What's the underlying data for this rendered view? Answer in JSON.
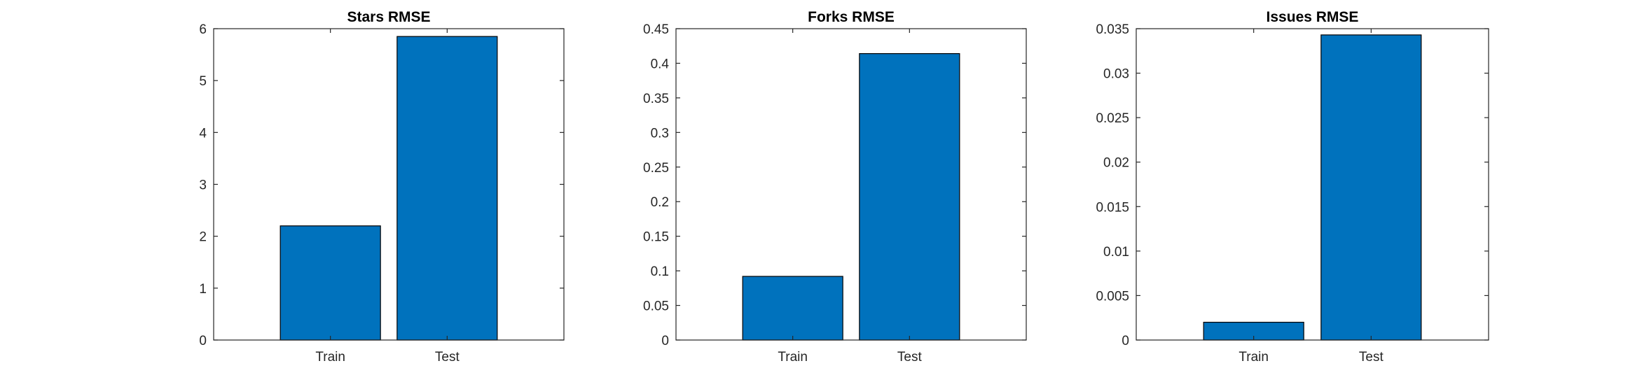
{
  "figure": {
    "background": "#ffffff",
    "bar_color": "#0072bd",
    "bar_edge_color": "#000000",
    "axis_color": "#262626"
  },
  "chart_data": [
    {
      "type": "bar",
      "title": "Stars RMSE",
      "xlabel": "",
      "ylabel": "",
      "categories": [
        "Train",
        "Test"
      ],
      "values": [
        2.2,
        5.85
      ],
      "ylim": [
        0,
        6
      ],
      "yticks": [
        0,
        1,
        2,
        3,
        4,
        5,
        6
      ],
      "ytick_labels": [
        "0",
        "1",
        "2",
        "3",
        "4",
        "5",
        "6"
      ],
      "grid": false,
      "legend": "none"
    },
    {
      "type": "bar",
      "title": "Forks RMSE",
      "xlabel": "",
      "ylabel": "",
      "categories": [
        "Train",
        "Test"
      ],
      "values": [
        0.092,
        0.414
      ],
      "ylim": [
        0,
        0.45
      ],
      "yticks": [
        0,
        0.05,
        0.1,
        0.15,
        0.2,
        0.25,
        0.3,
        0.35,
        0.4,
        0.45
      ],
      "ytick_labels": [
        "0",
        "0.05",
        "0.1",
        "0.15",
        "0.2",
        "0.25",
        "0.3",
        "0.35",
        "0.4",
        "0.45"
      ],
      "grid": false,
      "legend": "none"
    },
    {
      "type": "bar",
      "title": "Issues RMSE",
      "xlabel": "",
      "ylabel": "",
      "categories": [
        "Train",
        "Test"
      ],
      "values": [
        0.002,
        0.0343
      ],
      "ylim": [
        0,
        0.035
      ],
      "yticks": [
        0,
        0.005,
        0.01,
        0.015,
        0.02,
        0.025,
        0.03,
        0.035
      ],
      "ytick_labels": [
        "0",
        "0.005",
        "0.01",
        "0.015",
        "0.02",
        "0.025",
        "0.03",
        "0.035"
      ],
      "grid": false,
      "legend": "none"
    }
  ]
}
